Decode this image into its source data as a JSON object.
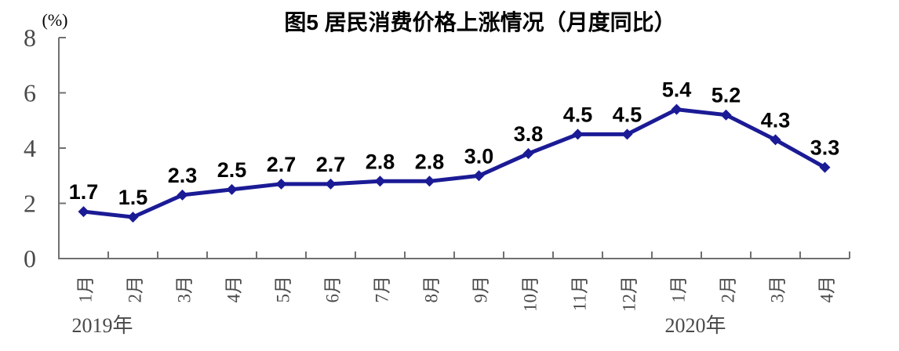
{
  "chart_data": {
    "type": "line",
    "title": "图5  居民消费价格上涨情况（月度同比）",
    "unit_label": "(%)",
    "x": [
      "1月",
      "2月",
      "3月",
      "4月",
      "5月",
      "6月",
      "7月",
      "8月",
      "9月",
      "10月",
      "11月",
      "12月",
      "1月",
      "2月",
      "3月",
      "4月"
    ],
    "year_markers": [
      {
        "label": "2019年",
        "index": 0
      },
      {
        "label": "2020年",
        "index": 12
      }
    ],
    "values": [
      1.7,
      1.5,
      2.3,
      2.5,
      2.7,
      2.7,
      2.8,
      2.8,
      3.0,
      3.8,
      4.5,
      4.5,
      5.4,
      5.2,
      4.3,
      3.3
    ],
    "point_labels": [
      "1.7",
      "1.5",
      "2.3",
      "2.5",
      "2.7",
      "2.7",
      "2.8",
      "2.8",
      "3.0",
      "3.8",
      "4.5",
      "4.5",
      "5.4",
      "5.2",
      "4.3",
      "3.3"
    ],
    "ylim": [
      0,
      8
    ],
    "yticks": [
      0,
      2,
      4,
      6,
      8
    ],
    "grid": false,
    "legend": "none",
    "marker": "diamond",
    "colors": {
      "line": "#1b1b96",
      "axis": "#707070",
      "tick_text": "#4a4a4a",
      "label_text": "#000000",
      "title_text": "#000000"
    }
  }
}
